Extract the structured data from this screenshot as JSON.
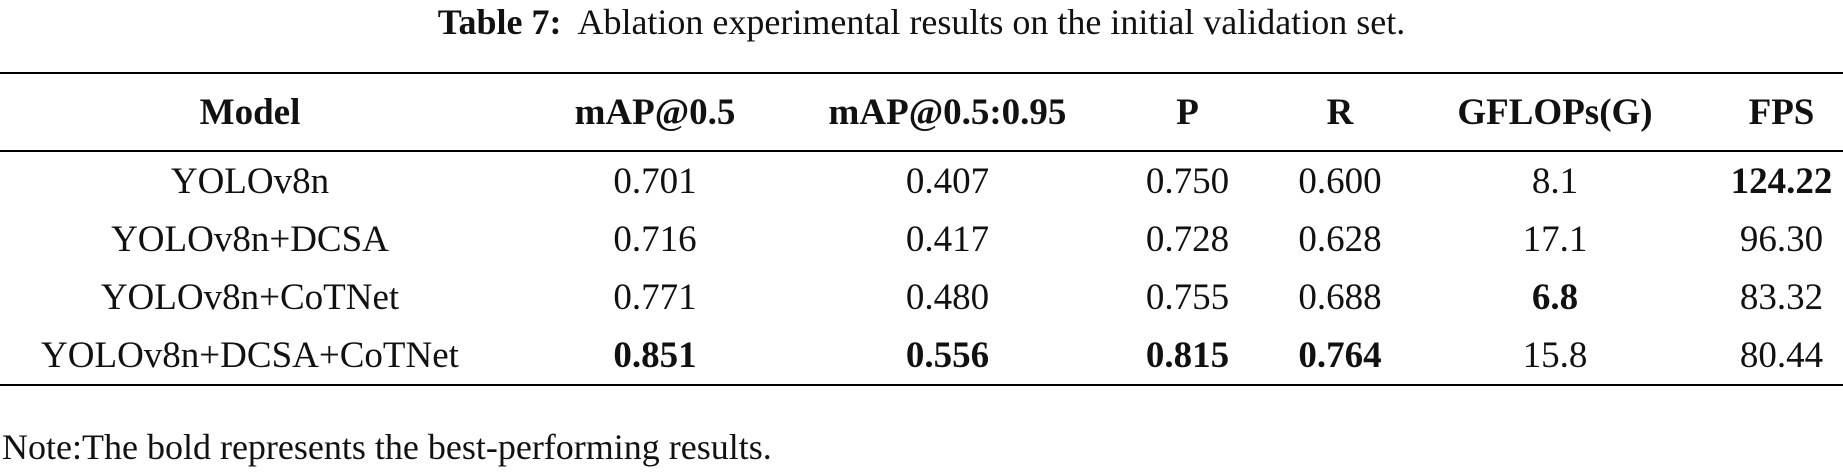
{
  "caption": {
    "label": "Table 7:",
    "text": "Ablation experimental results on the initial validation set."
  },
  "table": {
    "header": [
      "Model",
      "mAP@0.5",
      "mAP@0.5:0.95",
      "P",
      "R",
      "GFLOPs(G)",
      "FPS"
    ],
    "rows": [
      [
        "YOLOv8n",
        "0.701",
        "0.407",
        "0.750",
        "0.600",
        "8.1",
        "124.22"
      ],
      [
        "YOLOv8n+DCSA",
        "0.716",
        "0.417",
        "0.728",
        "0.628",
        "17.1",
        "96.30"
      ],
      [
        "YOLOv8n+CoTNet",
        "0.771",
        "0.480",
        "0.755",
        "0.688",
        "6.8",
        "83.32"
      ],
      [
        "YOLOv8n+DCSA+CoTNet",
        "0.851",
        "0.556",
        "0.815",
        "0.764",
        "15.8",
        "80.44"
      ]
    ]
  },
  "note": "Note:The bold represents the best-performing results."
}
